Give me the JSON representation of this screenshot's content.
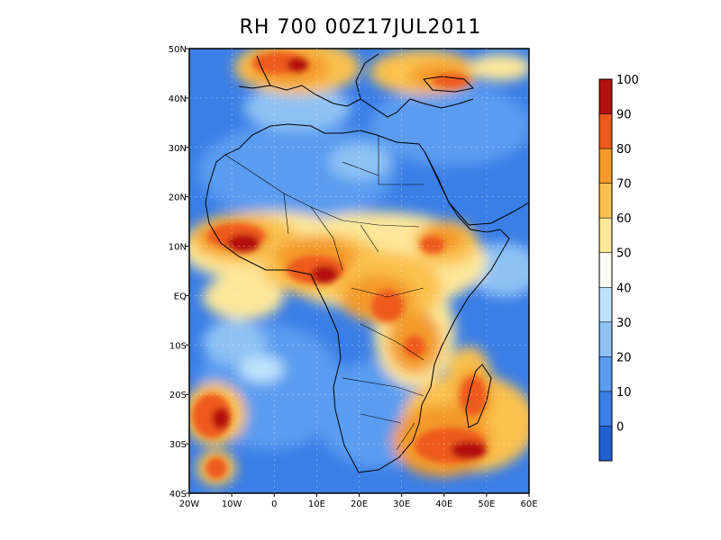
{
  "title": "RH 700 00Z17JUL2011",
  "map": {
    "variable": "RH",
    "level": "700",
    "time": "00Z17JUL2011",
    "lon_range": [
      -20,
      60
    ],
    "lat_range": [
      -40,
      50
    ],
    "lon_ticks": [
      "20W",
      "10W",
      "0",
      "10E",
      "20E",
      "30E",
      "40E",
      "50E",
      "60E"
    ],
    "lat_ticks": [
      "50N",
      "40N",
      "30N",
      "20N",
      "10N",
      "EQ",
      "10S",
      "20S",
      "30S",
      "40S"
    ]
  },
  "colorbar": {
    "levels": [
      "0",
      "10",
      "20",
      "30",
      "40",
      "50",
      "60",
      "70",
      "80",
      "90",
      "100"
    ],
    "colors": [
      "#1f5fd0",
      "#3a7ee6",
      "#5a9cf0",
      "#8ec2f4",
      "#bde3fb",
      "#fbfbf5",
      "#fde79a",
      "#fbc14e",
      "#f39a2a",
      "#ee5a1c",
      "#b41010"
    ]
  }
}
